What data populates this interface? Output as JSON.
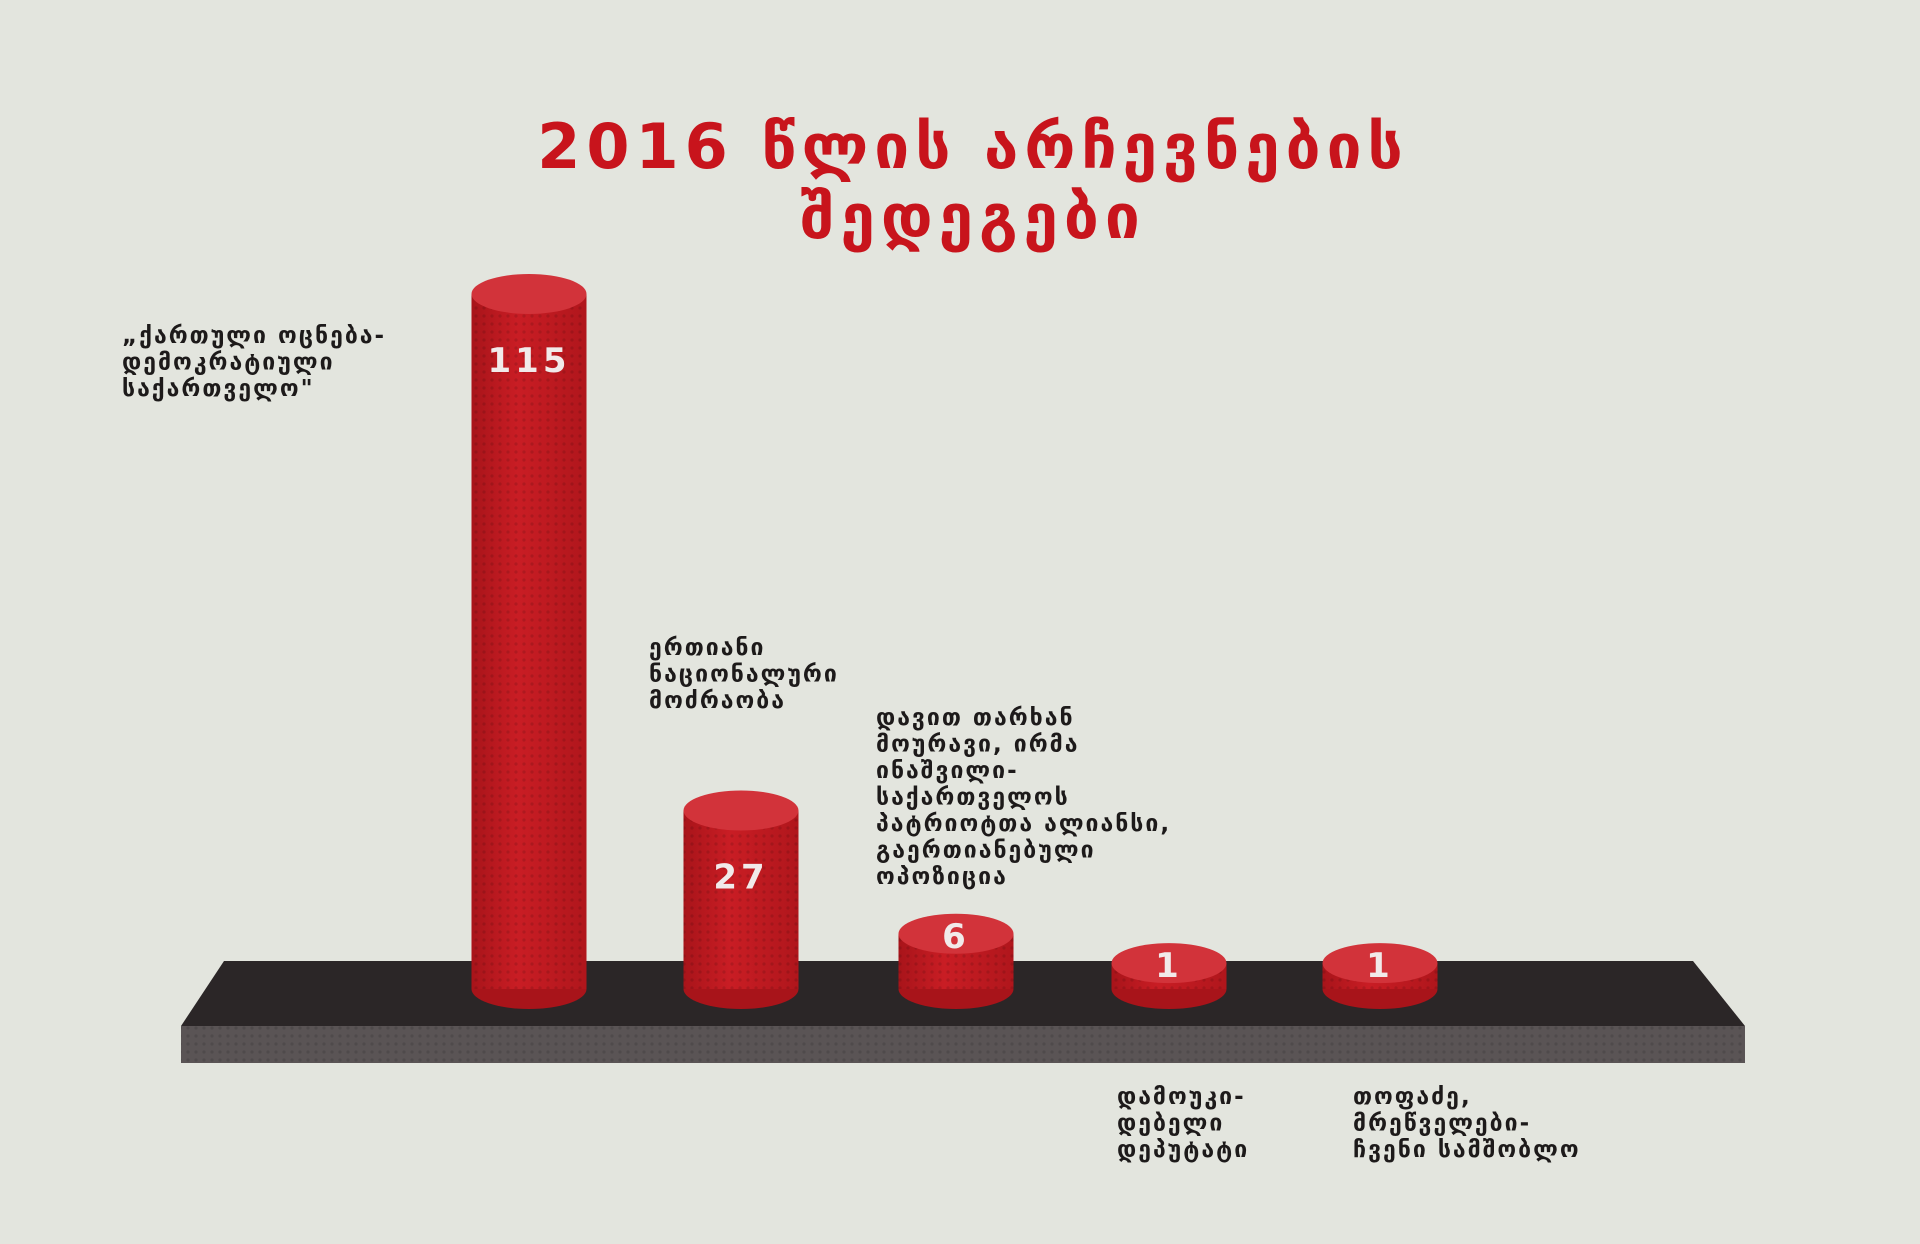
{
  "chart_data": {
    "type": "bar",
    "title": [
      "2016 წლის არჩევნების",
      "შედეგები"
    ],
    "categories": [
      [
        "„ქართული ოცნება-",
        "დემოკრატიული",
        "საქართველო\""
      ],
      [
        "ერთიანი",
        "ნაციონალური",
        "მოძრაობა"
      ],
      [
        "დავით თარხან",
        "მოურავი, ირმა",
        "ინაშვილი-",
        "საქართველოს",
        "პატრიოტთა ალიანსი,",
        "გაერთიანებული",
        "ოპოზიცია"
      ],
      [
        "დამოუკი-",
        "დებელი",
        "დეპუტატი"
      ],
      [
        "თოფაძე,",
        "მრეწველები-",
        "ჩვენი სამშობლო"
      ]
    ],
    "values": [
      115,
      27,
      6,
      1,
      1
    ],
    "value_labels": [
      "115",
      "27",
      "6",
      "1",
      "1"
    ],
    "bar_color": "#c11a20",
    "platform_color": "#2b2627",
    "title_color": "#c8141c",
    "xlabel": "",
    "ylabel": ""
  }
}
